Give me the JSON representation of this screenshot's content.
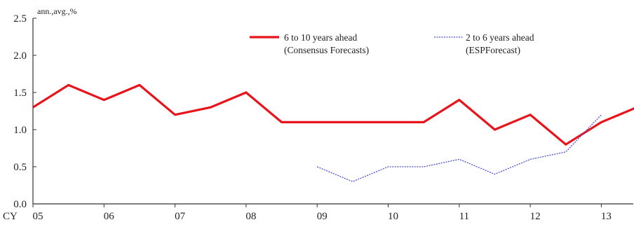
{
  "chart_data": {
    "type": "line",
    "unit_label": "ann.,avg.,%",
    "x_prefix_label": "CY",
    "x": [
      5,
      5.5,
      6,
      6.5,
      7,
      7.5,
      8,
      8.5,
      9,
      9.5,
      10,
      10.5,
      11,
      11.5,
      12,
      12.5,
      13,
      13.5
    ],
    "xlim": [
      5,
      13.45
    ],
    "x_ticks": [
      5,
      6,
      7,
      8,
      9,
      10,
      11,
      12,
      13
    ],
    "x_tick_labels": [
      "05",
      "06",
      "07",
      "08",
      "09",
      "10",
      "11",
      "12",
      "13"
    ],
    "ylim": [
      0,
      2.5
    ],
    "y_ticks": [
      0,
      0.5,
      1.0,
      1.5,
      2.0,
      2.5
    ],
    "y_tick_labels": [
      "0.0",
      "0.5",
      "1.0",
      "1.5",
      "2.0",
      "2.5"
    ],
    "grid": false,
    "legend_position": "top",
    "series": [
      {
        "name_line1": "6 to 10 years ahead",
        "name_line2": "(Consensus Forecasts)",
        "color": "#e8141b",
        "style": "solid",
        "values": [
          1.3,
          1.6,
          1.4,
          1.6,
          1.2,
          1.3,
          1.5,
          1.1,
          1.1,
          1.1,
          1.1,
          1.1,
          1.4,
          1.0,
          1.2,
          0.8,
          1.1,
          1.3
        ]
      },
      {
        "name_line1": "2 to 6 years ahead",
        "name_line2": "(ESPForecast)",
        "color": "#4b4fd6",
        "style": "dotted",
        "values": [
          null,
          null,
          null,
          null,
          null,
          null,
          null,
          null,
          0.5,
          0.3,
          0.5,
          0.5,
          0.6,
          0.4,
          0.6,
          0.7,
          1.2,
          null
        ]
      }
    ]
  }
}
